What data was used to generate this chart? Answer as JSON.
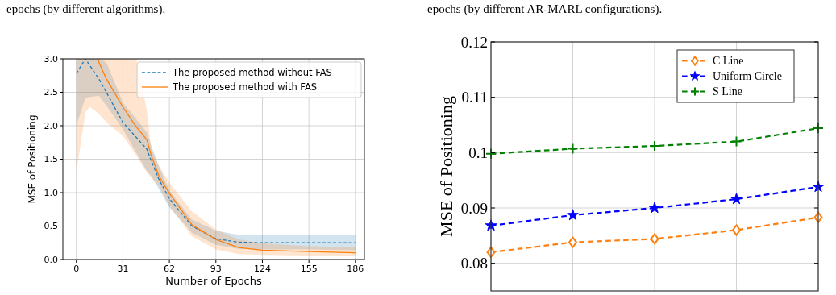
{
  "chart_data": [
    {
      "type": "line",
      "annotations": [
        "epochs (by different algorithms)."
      ],
      "xlabel": "Number of Epochs",
      "ylabel": "MSE of Positioning",
      "xlim": [
        -9,
        192
      ],
      "xticks": [
        0,
        31,
        62,
        93,
        124,
        155,
        186
      ],
      "ylim": [
        0,
        3
      ],
      "yticks": [
        {
          "value": 0,
          "label": "0.0"
        },
        0.5,
        {
          "value": 1,
          "label": "1.0"
        },
        1.5,
        {
          "value": 2,
          "label": "2.0"
        },
        2.5,
        {
          "value": 3,
          "label": "3.0"
        }
      ],
      "grid": true,
      "legend": "top right",
      "series": [
        {
          "name": "The proposed method without FAS",
          "color": "#1f77b4",
          "line_style": "dashed",
          "x": [
            0,
            6,
            15,
            20,
            31,
            47,
            50,
            55,
            62,
            77,
            93,
            108,
            124,
            155,
            186
          ],
          "values": [
            2.78,
            3.0,
            2.7,
            2.5,
            2.05,
            1.65,
            1.47,
            1.2,
            0.91,
            0.5,
            0.31,
            0.26,
            0.25,
            0.25,
            0.25
          ],
          "lower": [
            2.0,
            2.42,
            2.45,
            2.3,
            1.95,
            1.32,
            1.25,
            1.05,
            0.78,
            0.4,
            0.22,
            0.16,
            0.15,
            0.15,
            0.14
          ],
          "upper": [
            3.0,
            3.0,
            3.0,
            2.95,
            2.35,
            1.9,
            1.7,
            1.4,
            1.03,
            0.6,
            0.43,
            0.37,
            0.36,
            0.36,
            0.36
          ]
        },
        {
          "name": "The proposed method with FAS",
          "color": "#ff7f0e",
          "line_style": "solid",
          "x": [
            0,
            6,
            9,
            14,
            20,
            31,
            40,
            47,
            50,
            55,
            62,
            77,
            93,
            108,
            124,
            155,
            186
          ],
          "values": [
            null,
            null,
            null,
            3.0,
            2.7,
            2.28,
            1.98,
            1.79,
            1.55,
            1.25,
            0.99,
            0.52,
            0.3,
            0.18,
            0.14,
            0.12,
            0.1
          ],
          "lower": [
            1.3,
            2.2,
            2.28,
            2.2,
            2.05,
            1.85,
            1.55,
            1.3,
            1.22,
            1.1,
            0.8,
            0.35,
            0.15,
            0.08,
            0.07,
            0.06,
            0.05
          ],
          "upper": [
            3.0,
            3.0,
            3.0,
            3.0,
            3.0,
            3.0,
            3.0,
            2.23,
            1.65,
            1.4,
            1.15,
            0.72,
            0.45,
            0.3,
            0.24,
            0.2,
            0.18
          ]
        }
      ]
    },
    {
      "type": "line",
      "annotations": [
        "epochs (by different AR-MARL configurations)."
      ],
      "ylabel": "MSE of Positioning",
      "categories": [
        null,
        null,
        null,
        null,
        null
      ],
      "ylim": [
        0.075,
        0.12
      ],
      "yticks": [
        0.08,
        0.09,
        {
          "value": 0.1,
          "label": "0.1"
        },
        0.11,
        0.12
      ],
      "grid": true,
      "legend": "top right",
      "tick_labels": "y",
      "series": [
        {
          "name": "C Line",
          "color": "#ff7f0e",
          "line_style": "dashed",
          "marker": "diamond",
          "values": [
            0.082,
            0.0838,
            0.0844,
            0.086,
            0.0883
          ]
        },
        {
          "name": "Uniform Circle",
          "color": "#0000ff",
          "line_style": "dashed",
          "marker": "star",
          "values": [
            0.0868,
            0.0887,
            0.09,
            0.0916,
            0.0938
          ]
        },
        {
          "name": "S Line",
          "color": "#008000",
          "line_style": "dashed",
          "marker": "cross",
          "values": [
            0.0998,
            0.1007,
            0.1012,
            0.102,
            0.1044
          ]
        }
      ]
    }
  ]
}
